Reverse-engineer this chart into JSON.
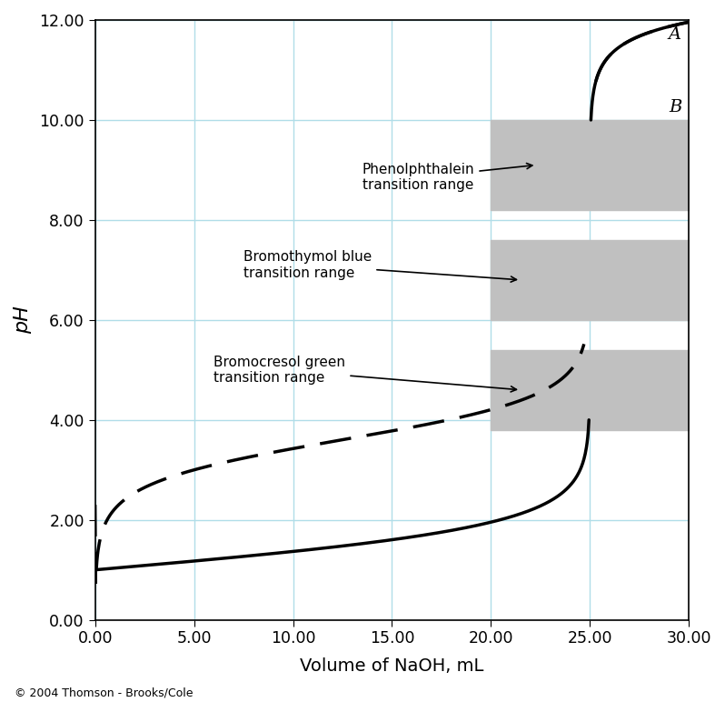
{
  "title": "",
  "xlabel": "Volume of NaOH, mL",
  "ylabel": "pH",
  "xlim": [
    0.0,
    30.0
  ],
  "ylim": [
    0.0,
    12.0
  ],
  "xticks": [
    0.0,
    5.0,
    10.0,
    15.0,
    20.0,
    25.0,
    30.0
  ],
  "yticks": [
    0.0,
    2.0,
    4.0,
    6.0,
    8.0,
    10.0,
    12.0
  ],
  "grid_color": "#b0dde8",
  "background_color": "#ffffff",
  "curve_A_label": "A",
  "curve_B_label": "B",
  "shade_start_x": 20.0,
  "shade_end_x": 30.0,
  "bands": [
    {
      "name": "Bromocresol green\ntransition range",
      "ymin": 3.8,
      "ymax": 5.4,
      "color": "#c0c0c0"
    },
    {
      "name": "Bromothymol blue\ntransition range",
      "ymin": 6.0,
      "ymax": 7.6,
      "color": "#c0c0c0"
    },
    {
      "name": "Phenolphthalein\ntransition range",
      "ymin": 8.2,
      "ymax": 10.0,
      "color": "#c0c0c0"
    }
  ],
  "copyright": "© 2004 Thomson - Brooks/Cole",
  "figsize": [
    7.98,
    7.72
  ],
  "dpi": 100
}
